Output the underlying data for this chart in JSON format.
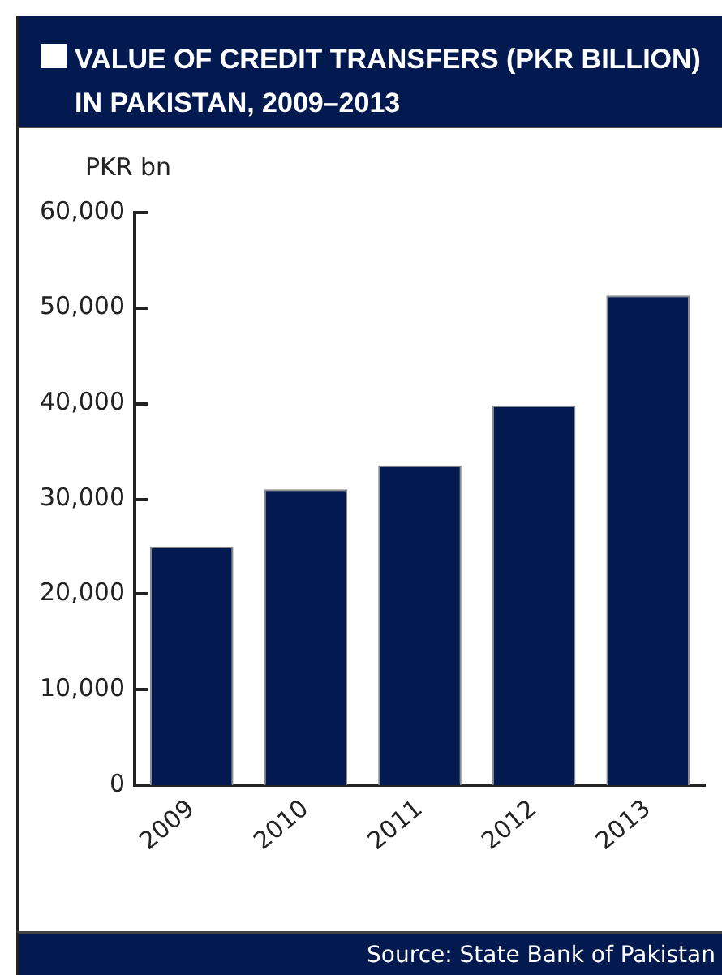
{
  "chart_data": {
    "type": "bar",
    "title": "VALUE OF CREDIT TRANSFERS (PKR BILLION) IN PAKISTAN, 2009–2013",
    "ylabel": "PKR bn",
    "categories": [
      "2009",
      "2010",
      "2011",
      "2012",
      "2013"
    ],
    "values": [
      25000,
      31000,
      33500,
      39800,
      51300
    ],
    "color": "#021a4f",
    "ylim": [
      0,
      60000
    ],
    "yticks": [
      0,
      {
        "value": 10000,
        "label": "10,000"
      },
      {
        "value": 20000,
        "label": "20,000"
      },
      {
        "value": 30000,
        "label": "30,000"
      },
      {
        "value": 40000,
        "label": "40,000"
      },
      {
        "value": 50000,
        "label": "50,000"
      },
      {
        "value": 60000,
        "label": "60,000"
      }
    ],
    "grid": false,
    "legend": false,
    "annotations": [
      "Source: State Bank of Pakistan"
    ]
  }
}
